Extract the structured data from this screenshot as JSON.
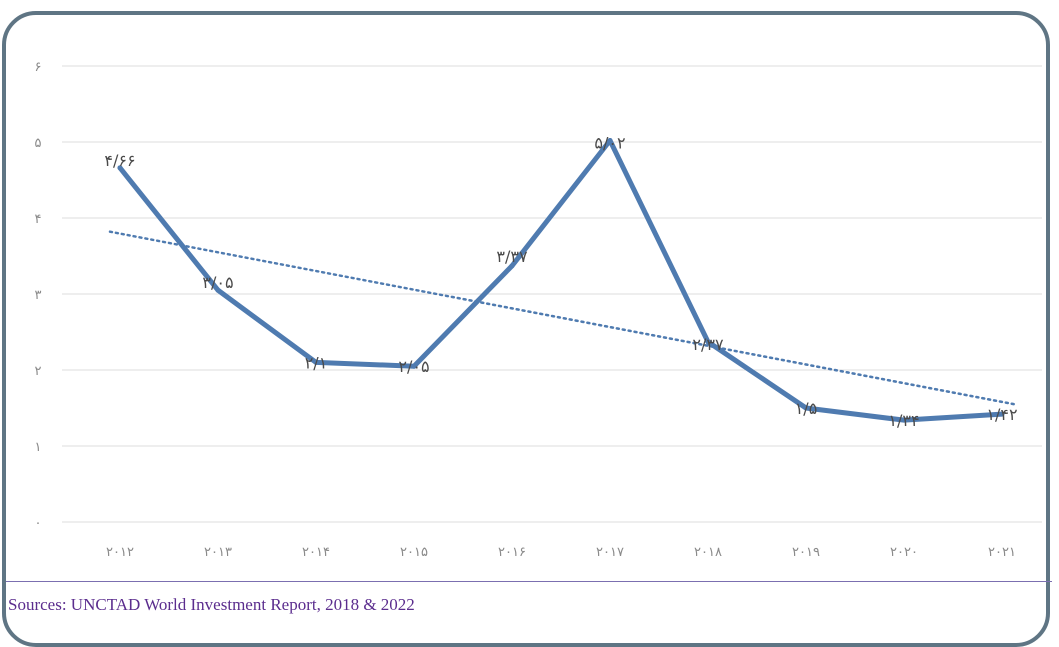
{
  "colors": {
    "line": "#4f7bb0",
    "trend": "#4f7bb0",
    "grid": "#dedede",
    "frame": "#5f7584",
    "source_text": "#5b2d8e"
  },
  "source": "Sources: UNCTAD World Investment Report, 2018 & 2022",
  "chart_data": {
    "type": "line",
    "categories": [
      "۲۰۱۲",
      "۲۰۱۳",
      "۲۰۱۴",
      "۲۰۱۵",
      "۲۰۱۶",
      "۲۰۱۷",
      "۲۰۱۸",
      "۲۰۱۹",
      "۲۰۲۰",
      "۲۰۲۱"
    ],
    "values": [
      4.66,
      3.05,
      2.1,
      2.05,
      3.37,
      5.02,
      2.37,
      1.5,
      1.34,
      1.42
    ],
    "data_labels": [
      "۴/۶۶",
      "۳/۰۵",
      "۲/۱",
      "۲/۰۵",
      "۳/۳۷",
      "۵/۰۲",
      "۲/۳۷",
      "۱/۵",
      "۱/۳۴",
      "۱/۴۲"
    ],
    "y_ticks": [
      "۰",
      "۱",
      "۲",
      "۳",
      "۴",
      "۵",
      "۶"
    ],
    "ylim": [
      0,
      6
    ],
    "trendline": {
      "style": "dotted",
      "start": 3.82,
      "end": 1.55
    },
    "grid": true,
    "legend": "none"
  }
}
